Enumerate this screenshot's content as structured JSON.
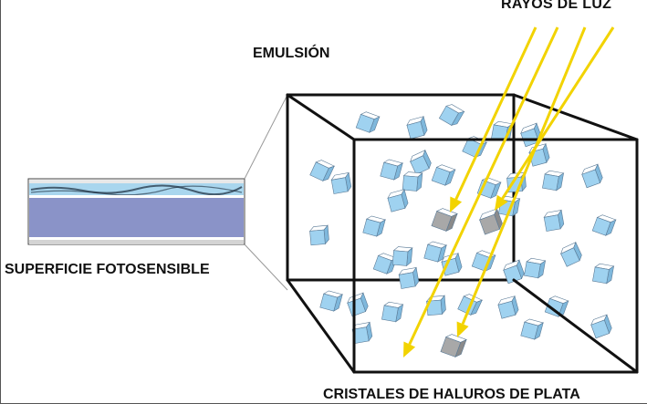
{
  "labels": {
    "rays": "RAYOS DE LUZ",
    "emulsion": "EMULSIÓN",
    "surface": "SUPERFICIE FOTOSENSIBLE",
    "crystals": "CRISTALES DE HALUROS DE PLATA"
  },
  "colors": {
    "crystal": "#9fd2f0",
    "crystal_dark": "#7fb8dc",
    "exposed_crystal": "#a8a8a8",
    "ray": "#f2d300",
    "box_edge": "#111111",
    "film_base": "#8a93c8",
    "film_emulsion": "#a9d6ee"
  },
  "counts": {
    "crystals": 46,
    "exposed_crystals": 3,
    "light_rays": 4
  }
}
